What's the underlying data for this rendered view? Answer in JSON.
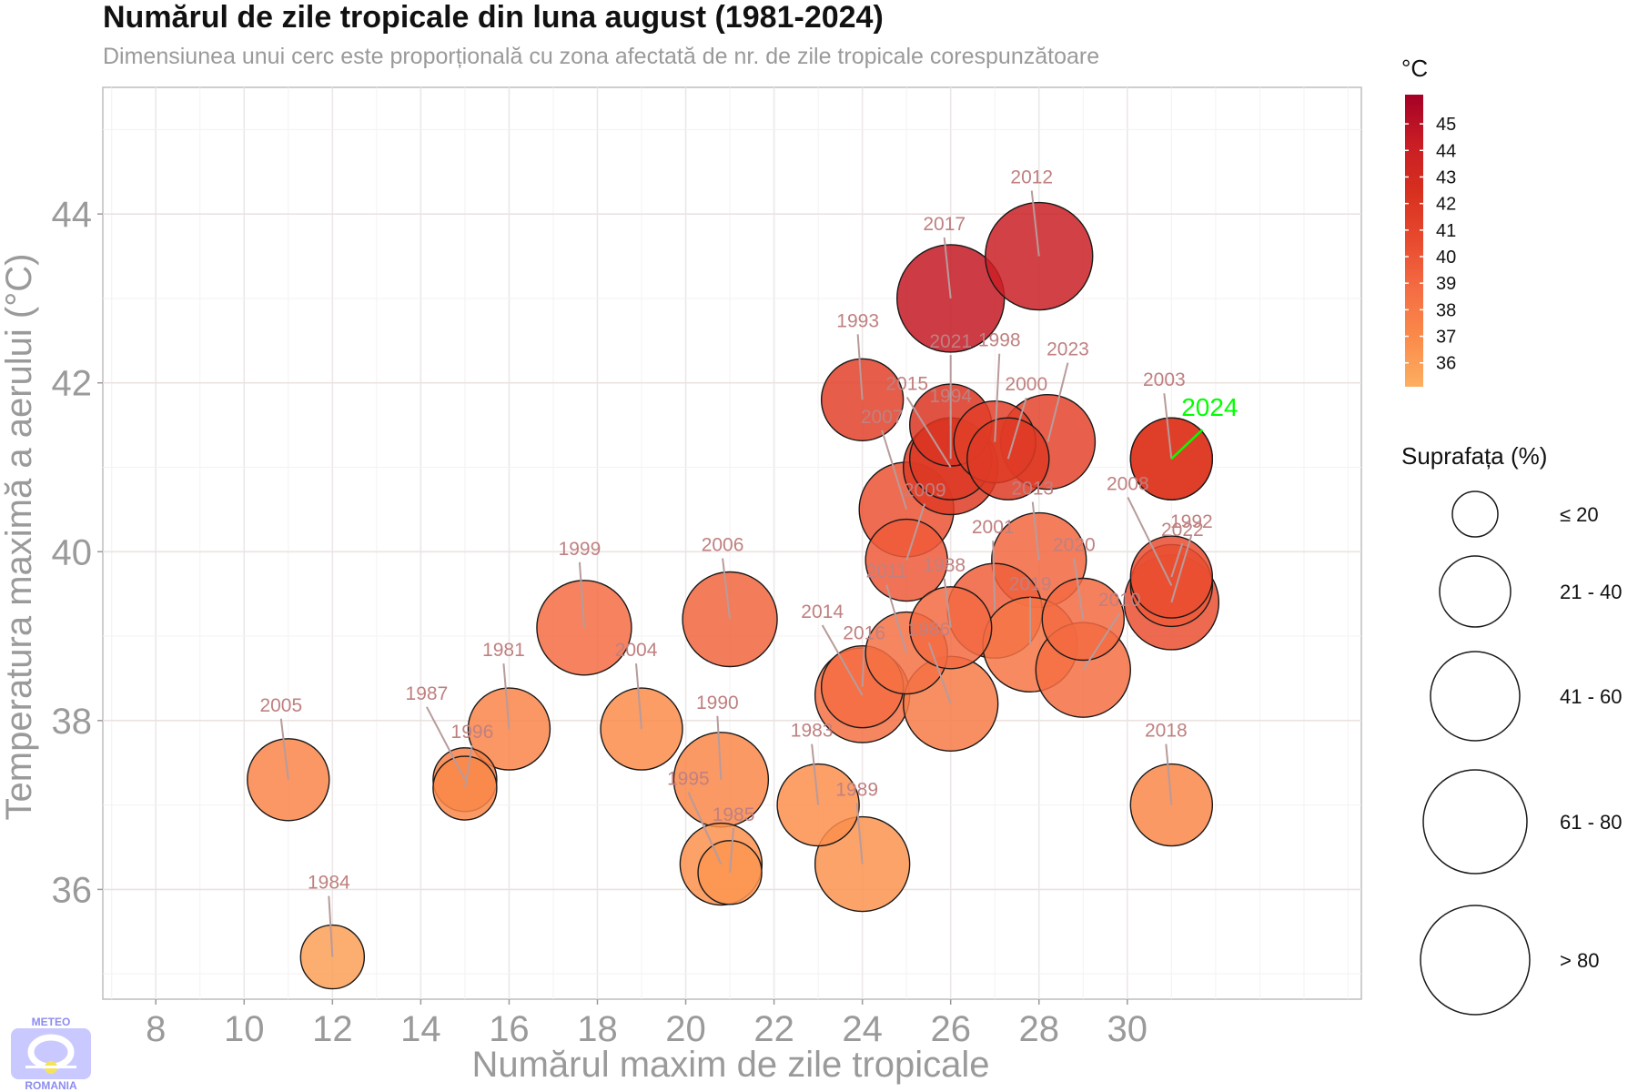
{
  "title": "Numărul de zile tropicale din luna august (1981-2024)",
  "subtitle": "Dimensiunea unui cerc este proporțională cu zona afectată de nr. de zile tropicale corespunzătoare",
  "logo": {
    "top_text": "METEO",
    "bottom_text": "ROMANIA"
  },
  "chart_data": {
    "type": "scatter",
    "title": "Numărul de zile tropicale din luna august (1981-2024)",
    "subtitle": "Dimensiunea unui cerc este proporțională cu zona afectată de nr. de zile tropicale corespunzătoare",
    "xlabel": "Numărul maxim de zile tropicale",
    "ylabel": "Temperatura maximă a aerului (°C)",
    "xlim": [
      6.8,
      35.3
    ],
    "ylim": [
      34.7,
      45.5
    ],
    "xticks": [
      8,
      10,
      12,
      14,
      16,
      18,
      20,
      22,
      24,
      26,
      28,
      30
    ],
    "yticks": [
      36,
      38,
      40,
      42,
      44
    ],
    "grid": true,
    "color_legend": {
      "title": "°C",
      "ticks": [
        45,
        44,
        43,
        42,
        41,
        40,
        39,
        38,
        37,
        36
      ],
      "range": [
        35.1,
        46.1
      ],
      "colors": [
        "#fdae61",
        "#fb8b4a",
        "#f46d43",
        "#e84a2f",
        "#d7301f",
        "#c81d25",
        "#a50026"
      ]
    },
    "size_legend": {
      "title": "Suprafața (%)",
      "classes": [
        "≤ 20",
        "21 - 40",
        "41 - 60",
        "61 - 80",
        "> 80"
      ]
    },
    "highlight": {
      "label": "2024",
      "color": "#00ff00"
    },
    "points": [
      {
        "year": "2005",
        "x": 11,
        "y": 37.3,
        "temp": 37.3,
        "size_class": 3
      },
      {
        "year": "1984",
        "x": 12,
        "y": 35.2,
        "temp": 35.9,
        "size_class": 2
      },
      {
        "year": "1987",
        "x": 15,
        "y": 37.3,
        "temp": 37.6,
        "size_class": 2
      },
      {
        "year": "1996",
        "x": 15,
        "y": 37.2,
        "temp": 37.2,
        "size_class": 2
      },
      {
        "year": "1981",
        "x": 16,
        "y": 37.9,
        "temp": 37.3,
        "size_class": 3
      },
      {
        "year": "1999",
        "x": 17.7,
        "y": 39.1,
        "temp": 38.8,
        "size_class": 4
      },
      {
        "year": "2004",
        "x": 19,
        "y": 37.9,
        "temp": 36.9,
        "size_class": 3
      },
      {
        "year": "1995",
        "x": 20.8,
        "y": 36.3,
        "temp": 36.6,
        "size_class": 3
      },
      {
        "year": "1985",
        "x": 21,
        "y": 36.2,
        "temp": 36.4,
        "size_class": 2
      },
      {
        "year": "1990",
        "x": 20.8,
        "y": 37.3,
        "temp": 37.2,
        "size_class": 4
      },
      {
        "year": "2006",
        "x": 21,
        "y": 39.2,
        "temp": 39.2,
        "size_class": 4
      },
      {
        "year": "1983",
        "x": 23,
        "y": 37.0,
        "temp": 36.7,
        "size_class": 3
      },
      {
        "year": "1989",
        "x": 24,
        "y": 36.3,
        "temp": 36.5,
        "size_class": 4
      },
      {
        "year": "2014",
        "x": 24,
        "y": 38.3,
        "temp": 38.5,
        "size_class": 4
      },
      {
        "year": "2016",
        "x": 24,
        "y": 38.4,
        "temp": 38.8,
        "size_class": 3
      },
      {
        "year": "2011",
        "x": 25,
        "y": 38.8,
        "temp": 38.5,
        "size_class": 3
      },
      {
        "year": "1986",
        "x": 26,
        "y": 38.2,
        "temp": 37.9,
        "size_class": 4
      },
      {
        "year": "2007",
        "x": 25,
        "y": 40.5,
        "temp": 40.2,
        "size_class": 4
      },
      {
        "year": "2009",
        "x": 25,
        "y": 39.9,
        "temp": 39.7,
        "size_class": 3
      },
      {
        "year": "1988",
        "x": 26,
        "y": 39.1,
        "temp": 38.9,
        "size_class": 3
      },
      {
        "year": "1993",
        "x": 24,
        "y": 41.8,
        "temp": 41.2,
        "size_class": 3
      },
      {
        "year": "2015",
        "x": 26,
        "y": 41.0,
        "temp": 41.6,
        "size_class": 4
      },
      {
        "year": "1994",
        "x": 26,
        "y": 41.1,
        "temp": 41.9,
        "size_class": 3
      },
      {
        "year": "2021",
        "x": 26,
        "y": 41.5,
        "temp": 42.1,
        "size_class": 3
      },
      {
        "year": "1998",
        "x": 27,
        "y": 41.3,
        "temp": 41.3,
        "size_class": 3
      },
      {
        "year": "2000",
        "x": 27.3,
        "y": 41.1,
        "temp": 41.7,
        "size_class": 3
      },
      {
        "year": "2023",
        "x": 28.2,
        "y": 41.3,
        "temp": 41.0,
        "size_class": 4
      },
      {
        "year": "2017",
        "x": 26,
        "y": 43.0,
        "temp": 44.5,
        "size_class": 5
      },
      {
        "year": "2012",
        "x": 28,
        "y": 43.5,
        "temp": 44.0,
        "size_class": 5
      },
      {
        "year": "2013",
        "x": 28,
        "y": 39.9,
        "temp": 39.1,
        "size_class": 4
      },
      {
        "year": "2001",
        "x": 27,
        "y": 39.3,
        "temp": 39.5,
        "size_class": 4
      },
      {
        "year": "2019",
        "x": 27.8,
        "y": 38.9,
        "temp": 38.3,
        "size_class": 4
      },
      {
        "year": "2020",
        "x": 29,
        "y": 39.2,
        "temp": 38.9,
        "size_class": 3
      },
      {
        "year": "2010",
        "x": 29,
        "y": 38.6,
        "temp": 38.7,
        "size_class": 4
      },
      {
        "year": "2008",
        "x": 31,
        "y": 39.6,
        "temp": 39.8,
        "size_class": 3
      },
      {
        "year": "1992",
        "x": 31,
        "y": 39.4,
        "temp": 40.3,
        "size_class": 4
      },
      {
        "year": "2022",
        "x": 31,
        "y": 39.7,
        "temp": 40.5,
        "size_class": 3
      },
      {
        "year": "2003",
        "x": 31,
        "y": 41.1,
        "temp": 42.4,
        "size_class": 3
      },
      {
        "year": "2024",
        "x": 31,
        "y": 41.1,
        "temp": 41.6,
        "size_class": 3
      },
      {
        "year": "2018",
        "x": 31,
        "y": 37.0,
        "temp": 37.2,
        "size_class": 3
      }
    ]
  }
}
